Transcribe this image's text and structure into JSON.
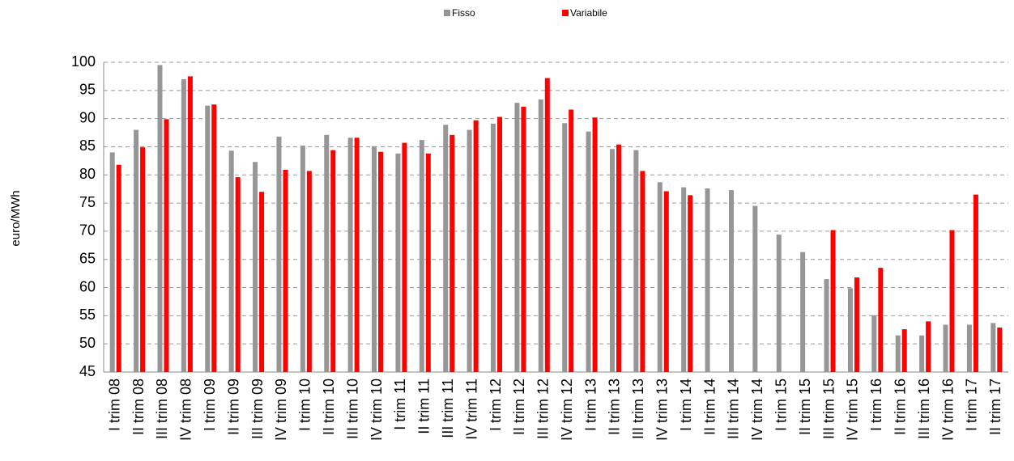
{
  "chart_data": {
    "type": "bar",
    "y_label": "euro/MWh",
    "categories": [
      "I trim 08",
      "II trim 08",
      "III trim 08",
      "IV trim 08",
      "I trim 09",
      "II trim 09",
      "III trim 09",
      "IV trim 09",
      "I trim 10",
      "II trim 10",
      "III trim 10",
      "IV trim 10",
      "I trim 11",
      "II trim 11",
      "III trim 11",
      "IV trim 11",
      "I trim 12",
      "II trim 12",
      "III trim 12",
      "IV trim 12",
      "I trim 13",
      "II trim 13",
      "III trim 13",
      "IV trim 13",
      "I trim 14",
      "II trim 14",
      "III trim 14",
      "IV trim 14",
      "I trim 15",
      "II trim 15",
      "III trim 15",
      "IV trim 15",
      "I trim 16",
      "II trim 16",
      "III trim 16",
      "IV trim 16",
      "I trim 17",
      "II trim 17"
    ],
    "series": [
      {
        "name": "Fisso",
        "color": "#969696",
        "values": [
          84,
          88,
          99.5,
          97,
          92.3,
          84.3,
          82.3,
          86.8,
          85.2,
          87.1,
          86.6,
          85.1,
          83.8,
          86.2,
          88.9,
          88,
          89.1,
          92.8,
          93.4,
          89.2,
          87.7,
          84.6,
          84.4,
          78.7,
          77.8,
          77.6,
          77.3,
          74.5,
          69.4,
          66.3,
          61.5,
          59.9,
          55.1,
          51.5,
          51.5,
          53.4,
          53.4,
          53.7
        ]
      },
      {
        "name": "Variabile",
        "color": "#ff0000",
        "values": [
          81.8,
          84.9,
          89.9,
          97.5,
          92.5,
          79.6,
          77,
          80.9,
          80.7,
          84.4,
          86.6,
          84.1,
          85.7,
          83.8,
          87.1,
          89.7,
          90.3,
          92.1,
          97.2,
          91.6,
          90.2,
          85.4,
          80.7,
          77.1,
          76.4,
          null,
          null,
          null,
          null,
          null,
          70.2,
          61.8,
          63.5,
          52.6,
          54,
          70.2,
          76.5,
          52.9
        ]
      }
    ],
    "ylim": [
      45,
      100
    ],
    "yticks": [
      45,
      50,
      55,
      60,
      65,
      70,
      75,
      80,
      85,
      90,
      95,
      100
    ],
    "grid": true
  }
}
